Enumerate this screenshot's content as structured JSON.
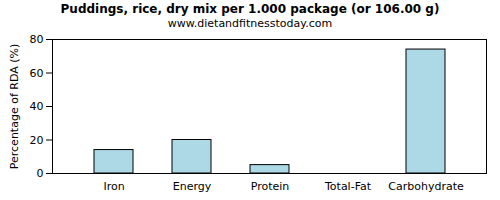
{
  "chart_data": {
    "type": "bar",
    "title": "Puddings, rice, dry mix per 1.000 package (or 106.00 g)",
    "subtitle": "www.dietandfitnesstoday.com",
    "y_label": "Percentage of RDA (%)",
    "categories": [
      "Iron",
      "Energy",
      "Protein",
      "Total-Fat",
      "Carbohydrate"
    ],
    "values": [
      14,
      20,
      5,
      0,
      74
    ],
    "color": "#add8e6",
    "ylim": [
      0,
      80
    ],
    "yticks": [
      0,
      20,
      40,
      60,
      80
    ],
    "grid": false
  }
}
